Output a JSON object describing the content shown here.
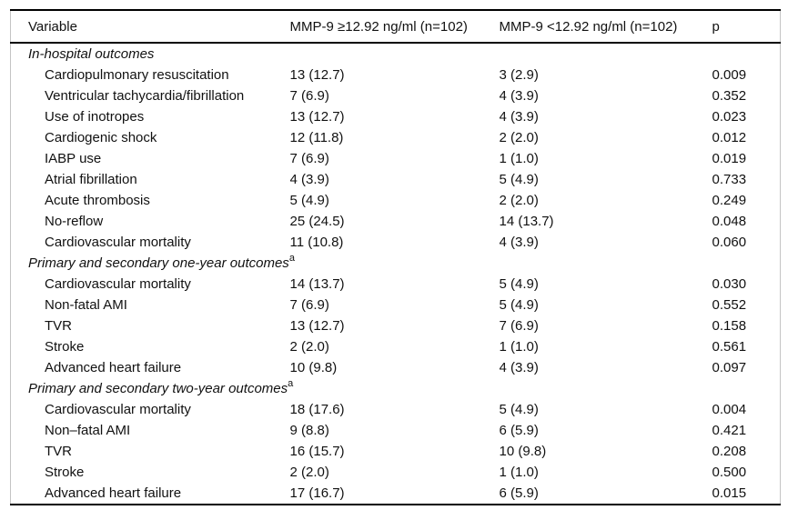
{
  "table": {
    "columns": [
      "Variable",
      "MMP-9 ≥12.92 ng/ml (n=102)",
      "MMP-9 <12.92 ng/ml (n=102)",
      "p"
    ],
    "sections": [
      {
        "heading": "In-hospital outcomes",
        "sup": "",
        "rows": [
          [
            "Cardiopulmonary resuscitation",
            "13 (12.7)",
            "3 (2.9)",
            "0.009"
          ],
          [
            "Ventricular tachycardia/fibrillation",
            "7 (6.9)",
            "4 (3.9)",
            "0.352"
          ],
          [
            "Use of inotropes",
            "13 (12.7)",
            "4 (3.9)",
            "0.023"
          ],
          [
            "Cardiogenic shock",
            "12 (11.8)",
            "2 (2.0)",
            "0.012"
          ],
          [
            "IABP use",
            "7 (6.9)",
            "1 (1.0)",
            "0.019"
          ],
          [
            "Atrial fibrillation",
            "4 (3.9)",
            "5 (4.9)",
            "0.733"
          ],
          [
            "Acute thrombosis",
            "5 (4.9)",
            "2 (2.0)",
            "0.249"
          ],
          [
            "No-reflow",
            "25 (24.5)",
            "14 (13.7)",
            "0.048"
          ],
          [
            "Cardiovascular mortality",
            "11 (10.8)",
            "4 (3.9)",
            "0.060"
          ]
        ]
      },
      {
        "heading": "Primary and secondary one-year outcomes",
        "sup": "a",
        "rows": [
          [
            "Cardiovascular mortality",
            "14 (13.7)",
            "5 (4.9)",
            "0.030"
          ],
          [
            "Non-fatal AMI",
            "7 (6.9)",
            "5 (4.9)",
            "0.552"
          ],
          [
            "TVR",
            "13 (12.7)",
            "7 (6.9)",
            "0.158"
          ],
          [
            "Stroke",
            "2 (2.0)",
            "1 (1.0)",
            "0.561"
          ],
          [
            "Advanced heart failure",
            "10 (9.8)",
            "4 (3.9)",
            "0.097"
          ]
        ]
      },
      {
        "heading": "Primary and secondary two-year outcomes",
        "sup": "a",
        "rows": [
          [
            "Cardiovascular mortality",
            "18 (17.6)",
            "5 (4.9)",
            "0.004"
          ],
          [
            "Non–fatal AMI",
            "9 (8.8)",
            "6 (5.9)",
            "0.421"
          ],
          [
            "TVR",
            "16 (15.7)",
            "10 (9.8)",
            "0.208"
          ],
          [
            "Stroke",
            "2 (2.0)",
            "1 (1.0)",
            "0.500"
          ],
          [
            "Advanced heart failure",
            "17 (16.7)",
            "6 (5.9)",
            "0.015"
          ]
        ]
      }
    ]
  }
}
